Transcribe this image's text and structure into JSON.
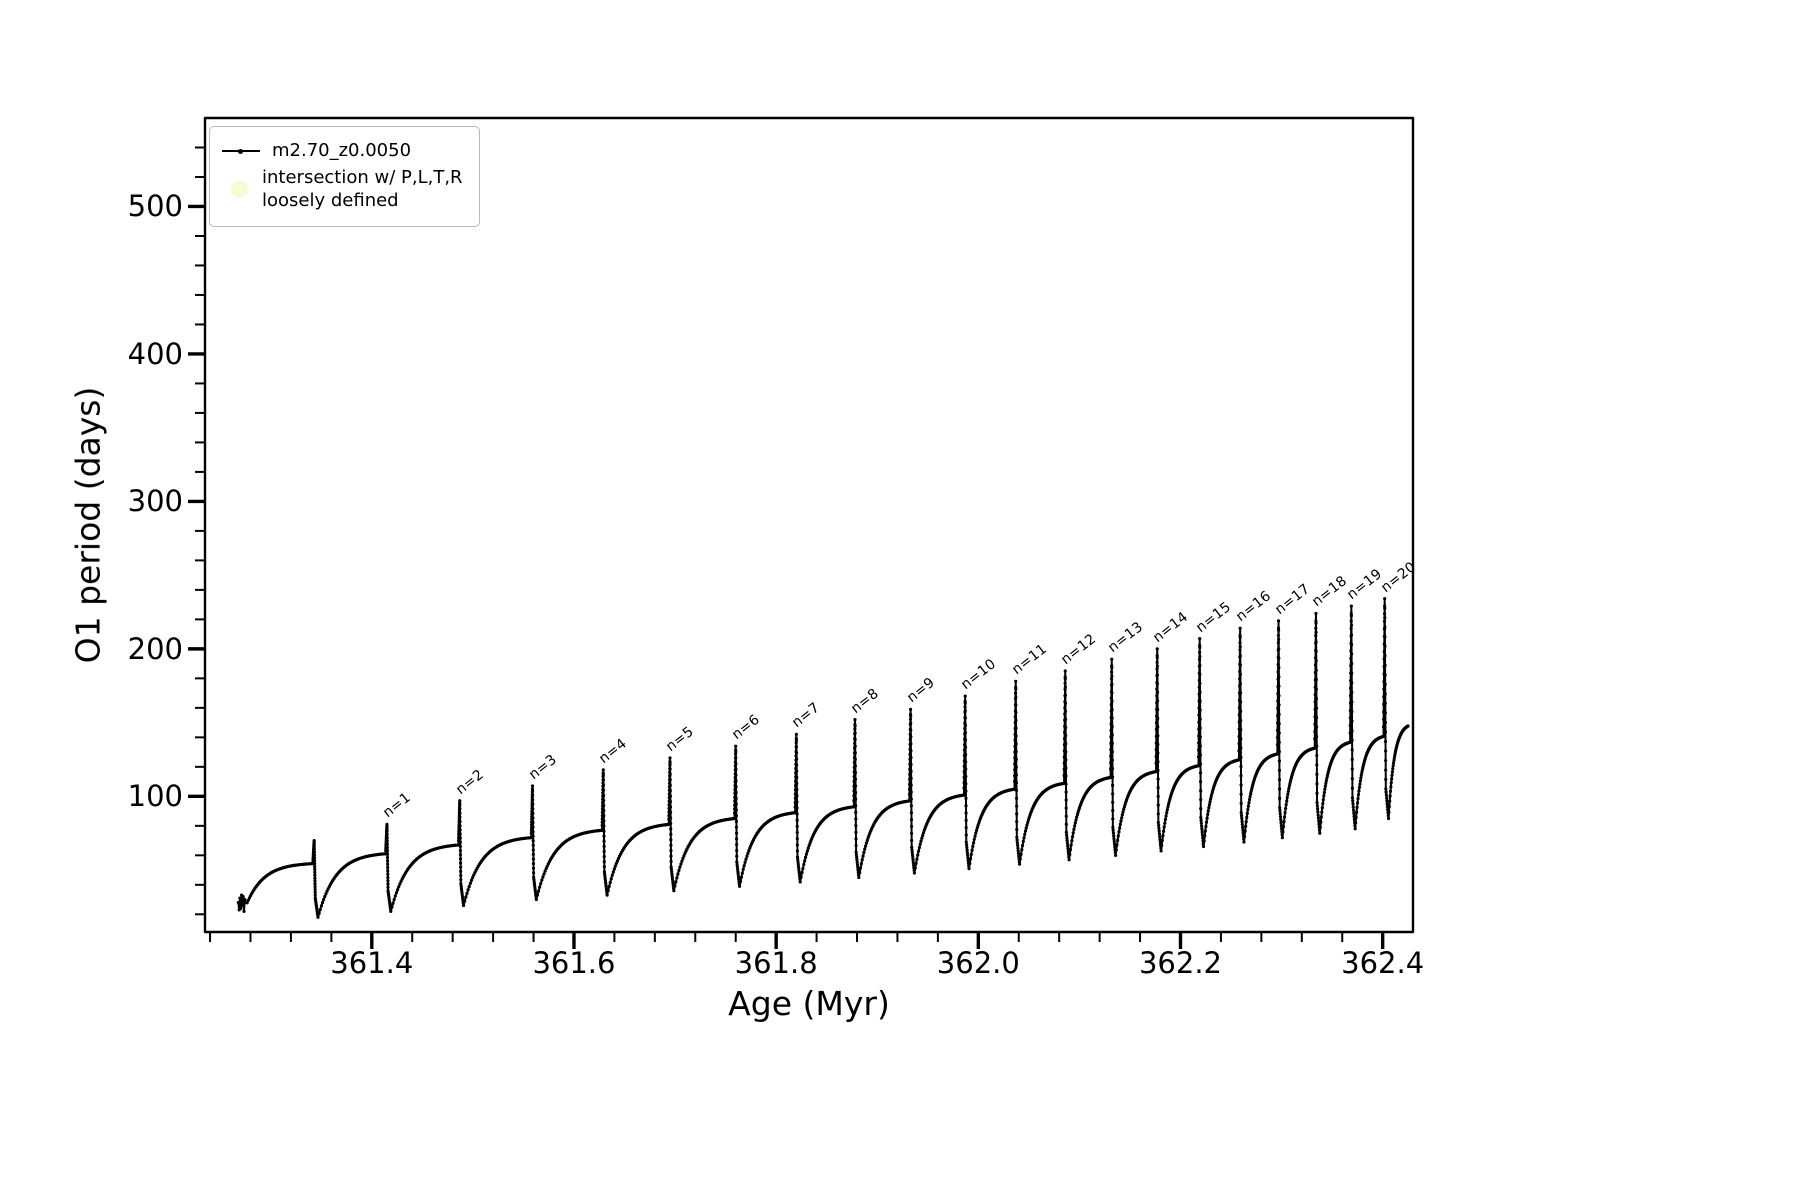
{
  "chart_data": {
    "type": "line",
    "title": "",
    "xlabel": "Age (Myr)",
    "ylabel": "O1 period (days)",
    "xlim": [
      361.235,
      362.43
    ],
    "ylim": [
      8,
      560
    ],
    "xticks": [
      {
        "value": 361.4,
        "label": "361.4"
      },
      {
        "value": 361.6,
        "label": "361.6"
      },
      {
        "value": 361.8,
        "label": "361.8"
      },
      {
        "value": 362.0,
        "label": "362.0"
      },
      {
        "value": 362.2,
        "label": "362.2"
      },
      {
        "value": 362.4,
        "label": "362.4"
      }
    ],
    "yticks": [
      {
        "value": 100,
        "label": "100"
      },
      {
        "value": 200,
        "label": "200"
      },
      {
        "value": 300,
        "label": "300"
      },
      {
        "value": 400,
        "label": "400"
      },
      {
        "value": 500,
        "label": "500"
      }
    ],
    "x_minor_step": 0.04,
    "y_minor_step": 20,
    "line_color": "#000000",
    "legend": {
      "series_label": "m2.70_z0.0050",
      "intersection_line1": "intersection w/ P,L,T,R",
      "intersection_line2": "loosely defined",
      "intersection_marker_color": "#fafad2"
    },
    "series_start": {
      "age": 361.268,
      "value": 28
    },
    "series_end": {
      "age": 362.425,
      "plateau": 150
    },
    "cycles": [
      {
        "label": "",
        "spike_age": 361.343,
        "spike_peak": 70,
        "pre_plateau": 55,
        "post_min": 18
      },
      {
        "label": "n=1",
        "spike_age": 361.415,
        "spike_peak": 81,
        "pre_plateau": 62,
        "post_min": 22
      },
      {
        "label": "n=2",
        "spike_age": 361.487,
        "spike_peak": 97,
        "pre_plateau": 68,
        "post_min": 26
      },
      {
        "label": "n=3",
        "spike_age": 361.559,
        "spike_peak": 107,
        "pre_plateau": 73,
        "post_min": 30
      },
      {
        "label": "n=4",
        "spike_age": 361.629,
        "spike_peak": 118,
        "pre_plateau": 78,
        "post_min": 33
      },
      {
        "label": "n=5",
        "spike_age": 361.695,
        "spike_peak": 126,
        "pre_plateau": 82,
        "post_min": 36
      },
      {
        "label": "n=6",
        "spike_age": 361.76,
        "spike_peak": 134,
        "pre_plateau": 86,
        "post_min": 39
      },
      {
        "label": "n=7",
        "spike_age": 361.82,
        "spike_peak": 142,
        "pre_plateau": 90,
        "post_min": 42
      },
      {
        "label": "n=8",
        "spike_age": 361.878,
        "spike_peak": 152,
        "pre_plateau": 94,
        "post_min": 45
      },
      {
        "label": "n=9",
        "spike_age": 361.933,
        "spike_peak": 159,
        "pre_plateau": 98,
        "post_min": 48
      },
      {
        "label": "n=10",
        "spike_age": 361.987,
        "spike_peak": 168,
        "pre_plateau": 102,
        "post_min": 51
      },
      {
        "label": "n=11",
        "spike_age": 362.037,
        "spike_peak": 178,
        "pre_plateau": 106,
        "post_min": 54
      },
      {
        "label": "n=12",
        "spike_age": 362.086,
        "spike_peak": 185,
        "pre_plateau": 110,
        "post_min": 57
      },
      {
        "label": "n=13",
        "spike_age": 362.132,
        "spike_peak": 193,
        "pre_plateau": 114,
        "post_min": 60
      },
      {
        "label": "n=14",
        "spike_age": 362.177,
        "spike_peak": 200,
        "pre_plateau": 118,
        "post_min": 63
      },
      {
        "label": "n=15",
        "spike_age": 362.219,
        "spike_peak": 207,
        "pre_plateau": 122,
        "post_min": 66
      },
      {
        "label": "n=16",
        "spike_age": 362.259,
        "spike_peak": 214,
        "pre_plateau": 126,
        "post_min": 69
      },
      {
        "label": "n=17",
        "spike_age": 362.297,
        "spike_peak": 219,
        "pre_plateau": 130,
        "post_min": 72
      },
      {
        "label": "n=18",
        "spike_age": 362.334,
        "spike_peak": 224,
        "pre_plateau": 134,
        "post_min": 75
      },
      {
        "label": "n=19",
        "spike_age": 362.369,
        "spike_peak": 229,
        "pre_plateau": 138,
        "post_min": 78
      },
      {
        "label": "n=20",
        "spike_age": 362.402,
        "spike_peak": 234,
        "pre_plateau": 142,
        "post_min": 85
      }
    ]
  }
}
